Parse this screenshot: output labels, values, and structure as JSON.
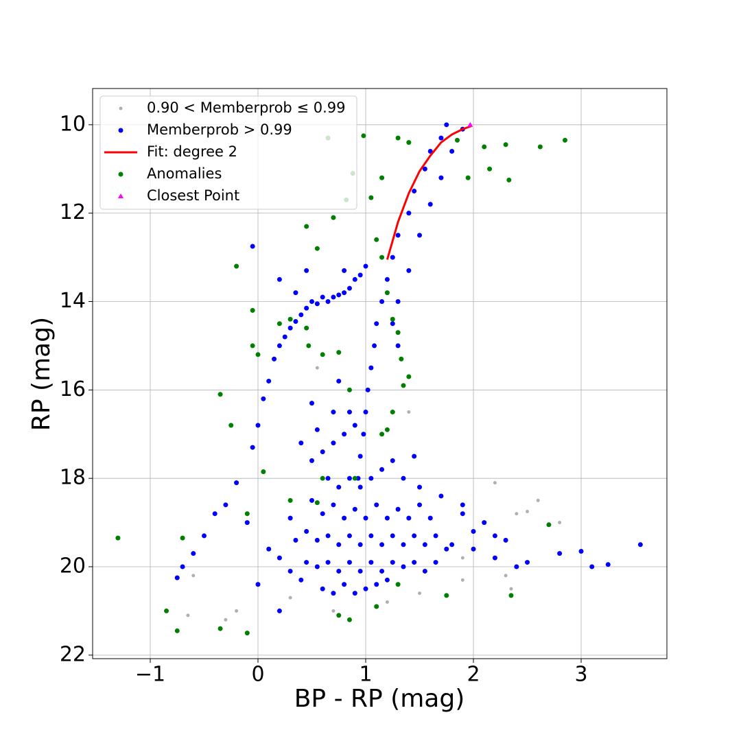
{
  "chart_data": {
    "type": "scatter",
    "xlabel": "BP - RP (mag)",
    "ylabel": "RP (mag)",
    "xlim": [
      -1.535,
      3.796
    ],
    "ylim": [
      22.08,
      9.18
    ],
    "xticks": [
      {
        "value": -1,
        "label": "−1"
      },
      0,
      1,
      2,
      3
    ],
    "yticks": [
      10,
      12,
      14,
      16,
      18,
      20,
      22
    ],
    "grid": true,
    "legend": "upper left",
    "series": [
      {
        "name": "0.90 < Memberprob ≤ 0.99",
        "color": "#b0b0b0",
        "marker": "dot",
        "x": [
          2.2,
          2.6,
          2.8,
          2.4,
          2.35,
          2.3,
          1.9,
          0.3,
          -0.2,
          -0.3,
          -0.6,
          -0.65,
          0.7,
          1.5,
          1.2,
          1.9,
          2.5,
          0.55,
          1.4
        ],
        "y": [
          18.1,
          18.5,
          19.0,
          18.8,
          20.5,
          20.2,
          19.8,
          20.7,
          21.0,
          21.2,
          20.2,
          21.1,
          21.0,
          20.6,
          20.8,
          20.3,
          18.75,
          15.5,
          16.5
        ]
      },
      {
        "name": "Memberprob > 0.99",
        "color": "#0000ff",
        "marker": "circle",
        "x": [
          1.75,
          1.7,
          1.6,
          1.55,
          1.45,
          1.4,
          1.3,
          1.25,
          1.2,
          1.15,
          1.1,
          1.08,
          1.05,
          1.02,
          1.0,
          0.98,
          0.95,
          0.93,
          1.9,
          1.8,
          1.7,
          1.6,
          1.5,
          1.4,
          1.3,
          1.25,
          1.3,
          0.1,
          0.15,
          0.2,
          0.3,
          0.4,
          0.5,
          0.6,
          0.7,
          0.8,
          0.9,
          1.0,
          0.05,
          0.0,
          -0.05,
          0.25,
          0.35,
          0.45,
          0.55,
          0.65,
          0.75,
          0.85,
          0.95,
          -0.05,
          0.2,
          0.35,
          0.45,
          0.8,
          1.8,
          2.0,
          2.2,
          2.5,
          2.8,
          3.0,
          3.1,
          3.25,
          3.55,
          2.4,
          2.0,
          1.9,
          2.2,
          -0.3,
          -0.4,
          -0.5,
          -0.6,
          -0.7,
          -0.2,
          -0.1,
          0.0,
          0.2,
          -0.75,
          0.5,
          0.6,
          0.7,
          0.8,
          0.85,
          0.9,
          0.65,
          0.75,
          0.85,
          0.95,
          1.05,
          1.15,
          1.25,
          1.35,
          0.5,
          0.6,
          0.7,
          0.8,
          0.9,
          1.0,
          1.1,
          1.2,
          1.3,
          1.4,
          1.5,
          1.6,
          0.45,
          0.55,
          0.65,
          0.75,
          0.85,
          0.95,
          1.05,
          1.15,
          1.25,
          1.35,
          1.45,
          1.55,
          1.65,
          1.75,
          0.45,
          0.55,
          0.65,
          0.75,
          0.85,
          0.95,
          1.05,
          1.15,
          1.25,
          1.35,
          1.45,
          1.55,
          1.65,
          0.6,
          0.7,
          0.8,
          0.9,
          1.0,
          1.1,
          1.2,
          0.4,
          0.3,
          0.2,
          0.1,
          0.35,
          0.3,
          1.5,
          1.7,
          1.9,
          2.1,
          2.3,
          1.45,
          0.55,
          0.7,
          0.75,
          0.5,
          0.4
        ],
        "y": [
          10.0,
          10.3,
          10.6,
          11.0,
          11.5,
          12.0,
          12.5,
          13.0,
          13.5,
          14.0,
          14.5,
          15.0,
          15.5,
          16.0,
          16.5,
          17.0,
          17.5,
          18.0,
          10.1,
          10.6,
          11.2,
          11.8,
          12.5,
          13.3,
          14.0,
          14.5,
          15.0,
          15.8,
          15.3,
          15.0,
          14.6,
          14.3,
          14.0,
          13.9,
          13.9,
          13.8,
          13.5,
          13.2,
          16.2,
          16.8,
          17.3,
          14.8,
          14.45,
          14.15,
          14.05,
          14.0,
          13.85,
          13.7,
          13.4,
          12.75,
          13.5,
          13.8,
          13.3,
          13.3,
          19.5,
          19.6,
          19.8,
          19.9,
          19.7,
          19.65,
          20.0,
          19.95,
          19.5,
          20.0,
          19.2,
          18.8,
          19.3,
          18.6,
          18.8,
          19.3,
          19.7,
          20.0,
          18.1,
          19.0,
          20.4,
          21.0,
          20.25,
          17.6,
          17.4,
          17.2,
          17.0,
          16.5,
          16.8,
          18.0,
          18.2,
          18.0,
          18.2,
          18.0,
          17.8,
          17.6,
          18.0,
          18.5,
          18.8,
          18.6,
          18.9,
          18.7,
          18.9,
          18.6,
          18.9,
          18.7,
          18.9,
          18.6,
          18.9,
          19.2,
          19.4,
          19.3,
          19.5,
          19.3,
          19.5,
          19.3,
          19.5,
          19.3,
          19.5,
          19.3,
          19.5,
          19.3,
          19.6,
          19.9,
          20.0,
          19.9,
          20.1,
          19.9,
          20.1,
          19.9,
          20.1,
          19.9,
          20.0,
          19.9,
          20.1,
          19.9,
          20.5,
          20.6,
          20.4,
          20.6,
          20.5,
          20.4,
          20.3,
          20.3,
          20.1,
          19.8,
          19.6,
          19.4,
          18.9,
          18.2,
          18.4,
          18.6,
          19.0,
          19.4,
          17.5,
          16.9,
          16.5,
          15.8,
          16.3,
          17.2
        ]
      },
      {
        "name": "Fit: degree 2",
        "color": "#ff0000",
        "marker": "line",
        "x": [
          1.2,
          1.3,
          1.4,
          1.5,
          1.6,
          1.7,
          1.8,
          1.9,
          1.98
        ],
        "y": [
          13.05,
          12.2,
          11.55,
          11.05,
          10.7,
          10.4,
          10.22,
          10.1,
          10.03
        ]
      },
      {
        "name": "Anomalies",
        "color": "#008000",
        "marker": "circle",
        "x": [
          0.65,
          0.82,
          -1.3,
          -0.85,
          -0.75,
          -0.7,
          -0.35,
          -0.25,
          -0.2,
          0.45,
          0.55,
          0.88,
          0.98,
          1.05,
          1.15,
          1.3,
          1.4,
          1.85,
          2.1,
          2.3,
          2.62,
          2.85,
          2.15,
          2.33,
          1.95,
          -0.05,
          -0.05,
          0.0,
          0.2,
          0.3,
          0.45,
          0.47,
          0.6,
          0.75,
          0.7,
          1.1,
          1.15,
          1.2,
          1.25,
          1.3,
          1.33,
          1.35,
          1.25,
          1.2,
          1.4,
          0.85,
          0.3,
          0.55,
          0.6,
          0.9,
          -0.1,
          0.05,
          1.3,
          1.75,
          2.7,
          2.35,
          0.85,
          -0.35,
          -0.1,
          1.1,
          0.75,
          1.15
        ],
        "y": [
          10.3,
          11.7,
          19.35,
          21.0,
          21.45,
          19.35,
          16.1,
          16.8,
          13.2,
          12.3,
          12.8,
          11.1,
          10.25,
          11.65,
          11.2,
          10.3,
          10.4,
          10.35,
          10.5,
          10.45,
          10.5,
          10.35,
          11.0,
          11.25,
          11.2,
          14.2,
          15.0,
          15.2,
          14.5,
          14.4,
          14.6,
          15.0,
          15.2,
          15.15,
          12.1,
          12.6,
          13.0,
          13.8,
          14.4,
          14.7,
          15.3,
          15.9,
          16.5,
          16.9,
          15.7,
          16.0,
          18.5,
          18.55,
          18.0,
          18.0,
          18.8,
          17.85,
          20.4,
          20.65,
          19.05,
          20.65,
          21.2,
          21.4,
          21.5,
          20.9,
          21.1,
          17.0
        ]
      },
      {
        "name": "Closest Point",
        "color": "#ff00ff",
        "marker": "triangle",
        "x": [
          1.97
        ],
        "y": [
          10.0
        ]
      }
    ]
  }
}
